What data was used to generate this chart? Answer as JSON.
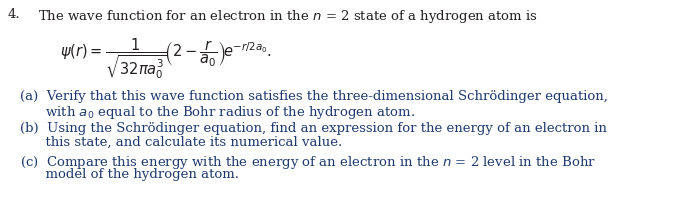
{
  "bg_color": "#ffffff",
  "text_color": "#231f20",
  "label_color": "#1e3a6e",
  "figsize": [
    6.77,
    2.13
  ],
  "dpi": 100,
  "title_number": "4.",
  "title_rest": "  The wave function for an electron in the $n$ = 2 state of a hydrogen atom is",
  "equation": "$\\psi(r) = \\dfrac{1}{\\sqrt{32\\pi a_0^3}}\\!\\left(2 - \\dfrac{r}{a_0}\\right)\\!e^{-r/2a_0}.$",
  "part_a_line1": "(a)  Verify that this wave function satisfies the three-dimensional Schrödinger equation,",
  "part_a_line2": "      with $a_0$ equal to the Bohr radius of the hydrogen atom.",
  "part_b_line1": "(b)  Using the Schrödinger equation, find an expression for the energy of an electron in",
  "part_b_line2": "      this state, and calculate its numerical value.",
  "part_c_line1": "(c)  Compare this energy with the energy of an electron in the $n$ = 2 level in the Bohr",
  "part_c_line2": "      model of the hydrogen atom.",
  "fontsize": 9.5,
  "eq_fontsize": 10.5
}
